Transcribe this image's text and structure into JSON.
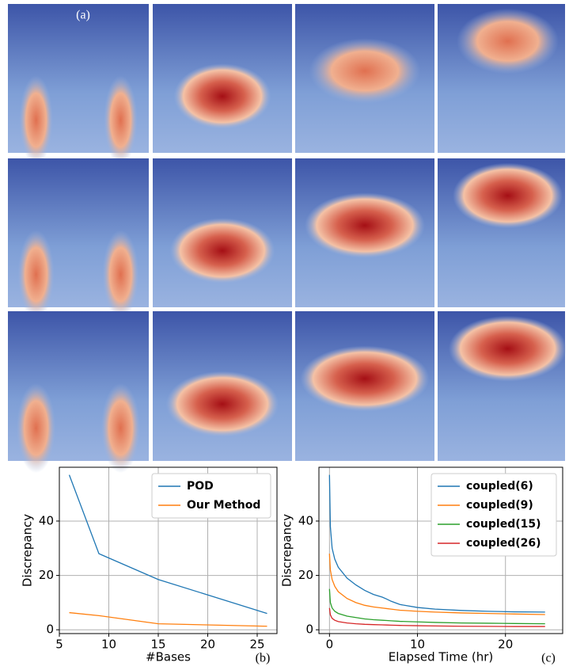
{
  "panel_a": {
    "label": "(a)"
  },
  "chart_data": [
    {
      "type": "line",
      "x_label": "#Bases",
      "y_label": "Discrepancy",
      "annotation": "(b)",
      "x": [
        6,
        9,
        15,
        26
      ],
      "series": [
        {
          "name": "POD",
          "color": "#1f77b4",
          "values": [
            57,
            28,
            18.5,
            6
          ]
        },
        {
          "name": "Our Method",
          "color": "#ff7f0e",
          "values": [
            6.3,
            5.2,
            2.2,
            1.3
          ]
        }
      ],
      "xlim": [
        5,
        27
      ],
      "xticks": [
        5,
        10,
        15,
        20,
        25
      ],
      "ylim": [
        -1.4,
        59.8
      ],
      "yticks": [
        0,
        20,
        40
      ],
      "grid": true,
      "legend": "upper right"
    },
    {
      "type": "line",
      "x_label": "Elapsed Time (hr)",
      "y_label": "Discrepancy",
      "annotation": "(c)",
      "x": [
        0,
        0.1,
        0.3,
        0.6,
        1,
        2,
        3,
        4,
        5,
        6,
        6.5,
        7,
        8,
        10,
        12,
        15,
        18,
        21,
        24.5
      ],
      "series": [
        {
          "name": "coupled(6)",
          "color": "#1f77b4",
          "values": [
            57,
            38,
            30,
            26,
            23,
            19,
            16.5,
            14.5,
            13,
            12,
            11.3,
            10.5,
            9.3,
            8.2,
            7.6,
            7.1,
            6.8,
            6.6,
            6.5
          ]
        },
        {
          "name": "coupled(9)",
          "color": "#ff7f0e",
          "values": [
            28,
            22,
            18.5,
            16,
            14,
            11.5,
            10,
            9,
            8.4,
            8,
            7.8,
            7.6,
            7.2,
            6.8,
            6.5,
            6.2,
            6,
            5.8,
            5.6
          ]
        },
        {
          "name": "coupled(15)",
          "color": "#2ca02c",
          "values": [
            15,
            10,
            8,
            6.8,
            6,
            5,
            4.5,
            4,
            3.7,
            3.5,
            3.4,
            3.3,
            3.1,
            2.9,
            2.7,
            2.5,
            2.4,
            2.3,
            2.2
          ]
        },
        {
          "name": "coupled(26)",
          "color": "#d62728",
          "values": [
            8,
            5.5,
            4.2,
            3.5,
            3,
            2.5,
            2.2,
            2,
            1.9,
            1.8,
            1.75,
            1.7,
            1.6,
            1.5,
            1.4,
            1.3,
            1.25,
            1.2,
            1.2
          ]
        }
      ],
      "xlim": [
        -1.2,
        26.5
      ],
      "xticks": [
        0,
        10,
        20
      ],
      "ylim": [
        -1.4,
        59.8
      ],
      "yticks": [
        0,
        20,
        40
      ],
      "grid": true,
      "legend": "upper right"
    }
  ]
}
